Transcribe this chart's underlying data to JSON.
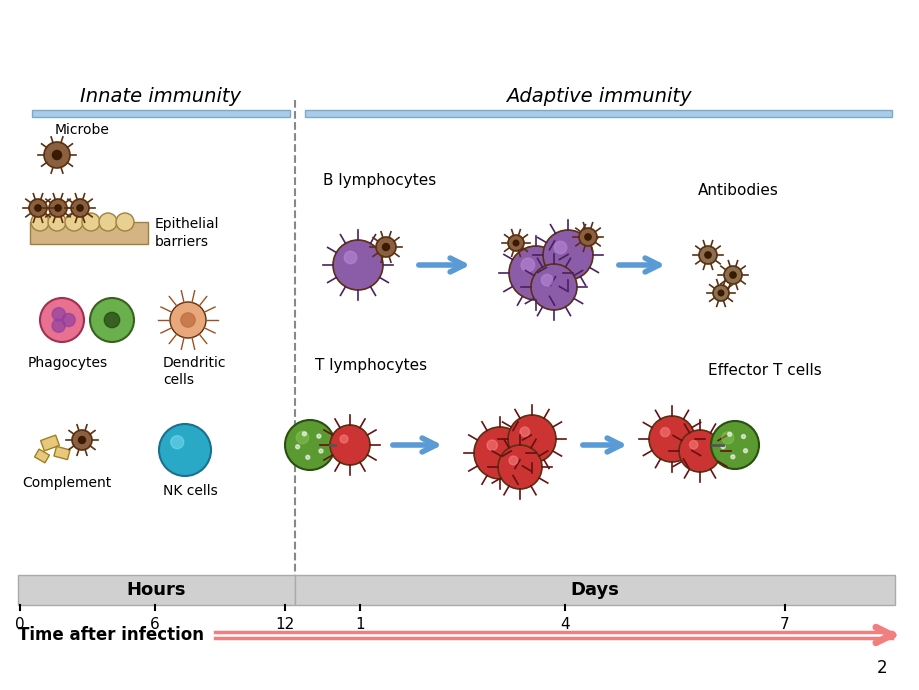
{
  "bg_color": "#ffffff",
  "title_innate": "Innate immunity",
  "title_adaptive": "Adaptive immunity",
  "label_microbe": "Microbe",
  "label_epithelial": "Epithelial\nbarriers",
  "label_phagocytes": "Phagocytes",
  "label_dendritic": "Dendritic\ncells",
  "label_complement": "Complement",
  "label_nk": "NK cells",
  "label_b_lymph": "B lymphocytes",
  "label_t_lymph": "T lymphocytes",
  "label_antibodies": "Antibodies",
  "label_effector": "Effector T cells",
  "label_hours": "Hours",
  "label_days": "Days",
  "label_time": "Time after infection",
  "tick_hours": [
    "0",
    "6",
    "12"
  ],
  "tick_days": [
    "1",
    "4",
    "7"
  ],
  "page_num": "2",
  "innate_bar_color": "#aacce8",
  "adaptive_bar_color": "#aacce8",
  "hours_bg": "#d0d0d0",
  "days_bg": "#d0d0d0",
  "arrow_color": "#f08080",
  "blue_arrow_color": "#5b9bd5",
  "dashed_line_color": "#888888",
  "b_cell_color": "#8b5ca8",
  "t_cell_color": "#cc3333",
  "nk_cell_color": "#29a9c5",
  "phago_pink_color": "#e87090",
  "phago_green_color": "#6ab04c",
  "dendritic_color": "#e8a87c",
  "microbe_color": "#8b6040",
  "complement_color": "#e8c87c"
}
